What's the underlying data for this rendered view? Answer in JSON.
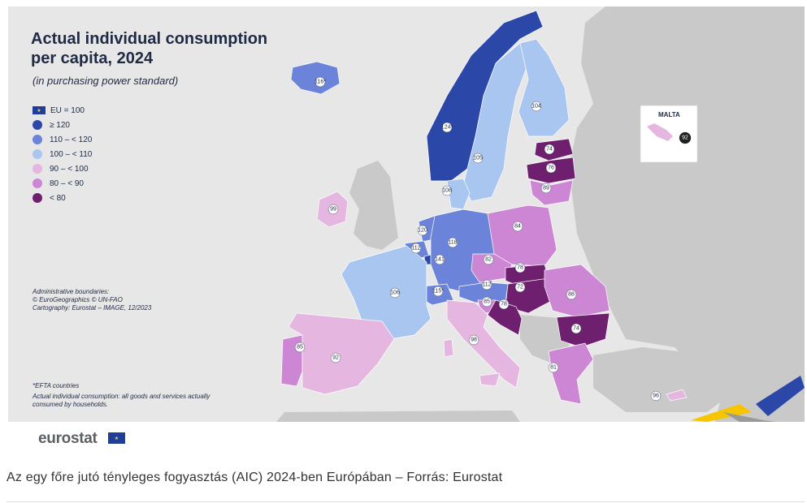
{
  "title_line1": "Actual individual consumption",
  "title_line2": "per capita, 2024",
  "subtitle": "(in purchasing power standard)",
  "legend": [
    {
      "label": "EU = 100",
      "type": "flag"
    },
    {
      "label": "≥ 120",
      "color": "#2b48a8"
    },
    {
      "label": "110 – < 120",
      "color": "#6b84d9"
    },
    {
      "label": "100 – < 110",
      "color": "#a9c6f0"
    },
    {
      "label": "90 – < 100",
      "color": "#e5b6df"
    },
    {
      "label": "80 – < 90",
      "color": "#cc86d4"
    },
    {
      "label": "< 80",
      "color": "#6e1f6e"
    }
  ],
  "admin": {
    "line1": "Administrative boundaries:",
    "line2": "© EuroGeographics © UN-FAO",
    "line3": "Cartography: Eurostat – IMAGE, 12/2023"
  },
  "notes": {
    "efta": "*EFTA countries",
    "aic_line1": "Actual individual consumption: all goods and services actually",
    "aic_line2": "consumed by households."
  },
  "inset_title": "MALTA",
  "countries": [
    {
      "name": "Iceland",
      "value": "116*",
      "class": "110 – < 120"
    },
    {
      "name": "Norway",
      "value": "124*",
      "class": "≥ 120"
    },
    {
      "name": "Sweden",
      "value": "105",
      "class": "100 – < 110"
    },
    {
      "name": "Finland",
      "value": "104",
      "class": "100 – < 110"
    },
    {
      "name": "Estonia",
      "value": "74",
      "class": "< 80"
    },
    {
      "name": "Latvia",
      "value": "76",
      "class": "< 80"
    },
    {
      "name": "Lithuania",
      "value": "89",
      "class": "80 – < 90"
    },
    {
      "name": "Denmark",
      "value": "108",
      "class": "100 – < 110"
    },
    {
      "name": "Ireland",
      "value": "99",
      "class": "90 – < 100"
    },
    {
      "name": "Netherlands",
      "value": "120",
      "class": "≥ 120"
    },
    {
      "name": "Belgium",
      "value": "112",
      "class": "110 – < 120"
    },
    {
      "name": "Luxembourg",
      "value": "141",
      "class": "≥ 120"
    },
    {
      "name": "Germany",
      "value": "118",
      "class": "110 – < 120"
    },
    {
      "name": "Poland",
      "value": "84",
      "class": "80 – < 90"
    },
    {
      "name": "Czechia",
      "value": "82",
      "class": "80 – < 90"
    },
    {
      "name": "Slovakia",
      "value": "78",
      "class": "< 80"
    },
    {
      "name": "Hungary",
      "value": "72",
      "class": "< 80"
    },
    {
      "name": "Austria",
      "value": "112",
      "class": "110 – < 120"
    },
    {
      "name": "Switzerland",
      "value": "115*",
      "class": "110 – < 120"
    },
    {
      "name": "Slovenia",
      "value": "85",
      "class": "80 – < 90"
    },
    {
      "name": "Croatia",
      "value": "78",
      "class": "< 80"
    },
    {
      "name": "Romania",
      "value": "88",
      "class": "80 – < 90"
    },
    {
      "name": "Bulgaria",
      "value": "74",
      "class": "< 80"
    },
    {
      "name": "France",
      "value": "106",
      "class": "100 – < 110"
    },
    {
      "name": "Portugal",
      "value": "85",
      "class": "80 – < 90"
    },
    {
      "name": "Spain",
      "value": "92",
      "class": "90 – < 100"
    },
    {
      "name": "Italy",
      "value": "98",
      "class": "90 – < 100"
    },
    {
      "name": "Greece",
      "value": "81",
      "class": "80 – < 90"
    },
    {
      "name": "Cyprus",
      "value": "96",
      "class": "90 – < 100"
    },
    {
      "name": "Malta",
      "value": "92",
      "class": "90 – < 100"
    }
  ],
  "logo": "eurostat",
  "caption": "Az egy főre jutó tényleges fogyasztás (AIC) 2024-ben Európában – Forrás: Eurostat"
}
